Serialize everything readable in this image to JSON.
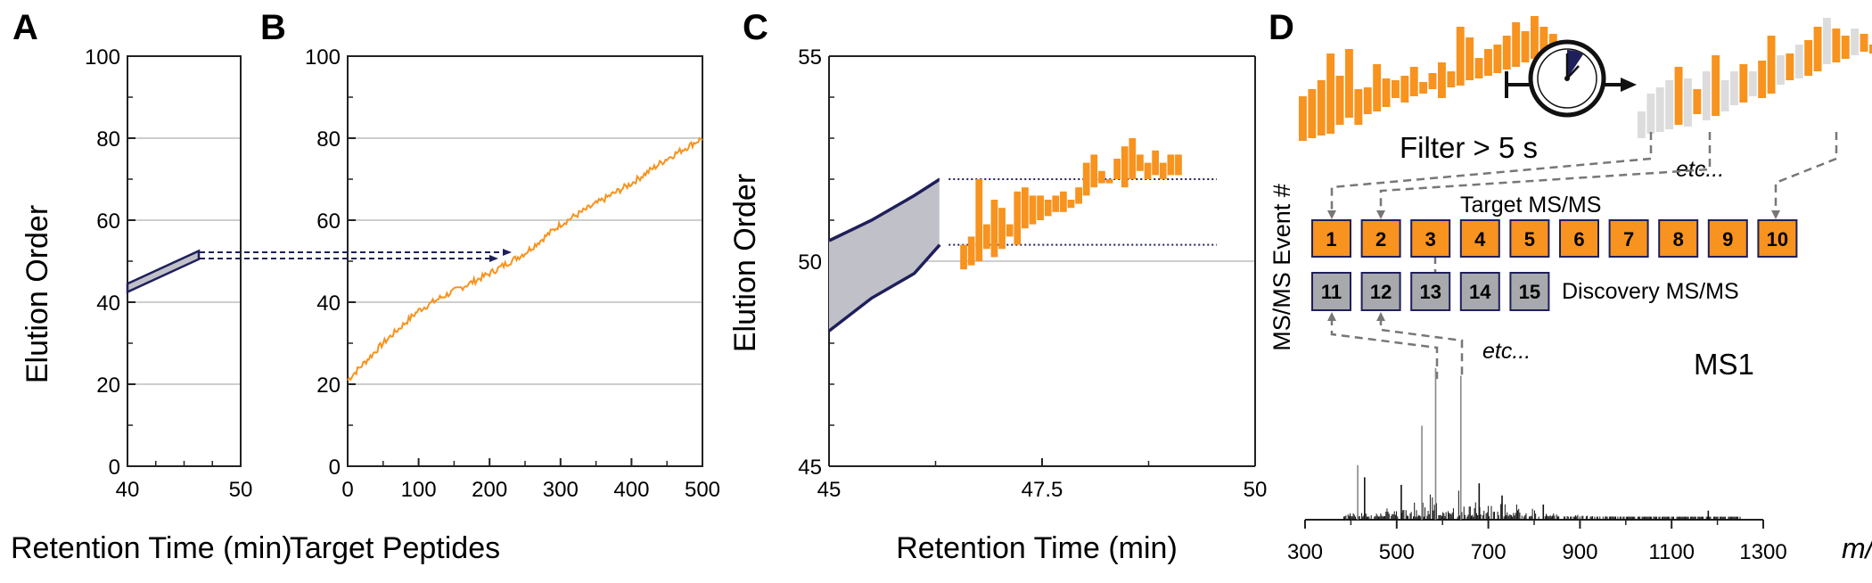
{
  "panels": {
    "a": {
      "letter": "A",
      "xlabel": "Retention Time (min)",
      "ylabel": "Elution Order",
      "xticks": [
        "40",
        "50"
      ],
      "yticks": [
        "0",
        "20",
        "40",
        "60",
        "80",
        "100"
      ]
    },
    "b": {
      "letter": "B",
      "xlabel": "Target Peptides",
      "xticks": [
        "0",
        "100",
        "200",
        "300",
        "400",
        "500"
      ],
      "yticks": [
        "0",
        "20",
        "40",
        "60",
        "80",
        "100"
      ]
    },
    "c": {
      "letter": "C",
      "xlabel": "Retention Time (min)",
      "ylabel": "Elution Order",
      "xticks": [
        "45",
        "47.5",
        "50"
      ],
      "yticks": [
        "45",
        "50",
        "55"
      ]
    },
    "d": {
      "letter": "D",
      "filter_label": "Filter > 5 s",
      "etc_label": "etc...",
      "target_label": "Target MS/MS",
      "discovery_label": "Discovery MS/MS",
      "event_axis_label": "MS/MS Event #",
      "ms1_label": "MS1",
      "target_events": [
        "1",
        "2",
        "3",
        "4",
        "5",
        "6",
        "7",
        "8",
        "9",
        "10"
      ],
      "discovery_events": [
        "11",
        "12",
        "13",
        "14",
        "15"
      ],
      "mz_ticks": [
        "300",
        "500",
        "700",
        "900",
        "1100",
        "1300"
      ],
      "mz_label": "m/z"
    }
  },
  "colors": {
    "orange": "#f7931e",
    "navy": "#1f1f5c",
    "band_gray": "#c0c0c8",
    "box_gray": "#a7a9ac",
    "light_gray": "#dcdcdc"
  },
  "chart_data": [
    {
      "type": "area",
      "panel": "A",
      "xlabel": "Retention Time (min)",
      "ylabel": "Elution Order",
      "xlim": [
        40,
        50
      ],
      "ylim": [
        0,
        100
      ],
      "grid": true,
      "band": {
        "x": [
          40,
          46.3
        ],
        "lower": [
          42.5,
          50.5
        ],
        "upper": [
          44.5,
          52.5
        ]
      }
    },
    {
      "type": "line",
      "panel": "B",
      "xlabel": "Target Peptides",
      "ylabel": "",
      "xlim": [
        0,
        500
      ],
      "ylim": [
        0,
        100
      ],
      "grid": true,
      "series": [
        {
          "x": [
            0,
            50,
            100,
            130,
            200,
            250,
            300,
            350,
            400,
            450,
            500
          ],
          "y": [
            21,
            30,
            38,
            41,
            47,
            52,
            59,
            64,
            69,
            75,
            80
          ]
        }
      ]
    },
    {
      "type": "area",
      "panel": "C",
      "xlabel": "Retention Time (min)",
      "ylabel": "Elution Order",
      "xlim": [
        45,
        50
      ],
      "ylim": [
        45,
        55
      ],
      "grid": true,
      "band": {
        "x": [
          45,
          45.5,
          46,
          46.3
        ],
        "lower": [
          48.3,
          49.1,
          49.7,
          50.4
        ],
        "upper": [
          50.5,
          51.0,
          51.6,
          52.0
        ]
      },
      "reference_lines": [
        50.4,
        52.0
      ],
      "bars": {
        "x": [
          46.58,
          46.67,
          46.76,
          46.85,
          46.94,
          47.03,
          47.12,
          47.21,
          47.3,
          47.39,
          47.48,
          47.57,
          47.66,
          47.75,
          47.84,
          47.93,
          48.02,
          48.11,
          48.2,
          48.29,
          48.38,
          48.47,
          48.56,
          48.65,
          48.74,
          48.83,
          48.92,
          49.01,
          49.1
        ],
        "low": [
          49.8,
          49.9,
          50.0,
          50.3,
          50.1,
          50.3,
          50.6,
          50.4,
          50.8,
          50.9,
          51.0,
          51.1,
          51.2,
          51.2,
          51.3,
          51.4,
          51.6,
          51.8,
          51.9,
          51.9,
          52.0,
          51.8,
          52.0,
          52.2,
          52.0,
          52.1,
          52.0,
          52.1,
          52.1
        ],
        "high": [
          50.4,
          50.6,
          52.0,
          50.9,
          51.5,
          51.3,
          50.9,
          51.7,
          51.8,
          51.6,
          51.6,
          51.5,
          51.6,
          51.7,
          51.5,
          51.8,
          52.4,
          52.6,
          52.2,
          52.0,
          52.5,
          52.8,
          53.0,
          52.6,
          52.4,
          52.7,
          52.4,
          52.6,
          52.6
        ]
      }
    },
    {
      "type": "bar",
      "panel": "D",
      "xlabel": "m/z",
      "xlim": [
        300,
        1300
      ],
      "note_peaks": [
        {
          "mz": 415,
          "intensity": 0.36
        },
        {
          "mz": 430,
          "intensity": 0.28
        },
        {
          "mz": 510,
          "intensity": 0.23
        },
        {
          "mz": 555,
          "intensity": 0.62
        },
        {
          "mz": 585,
          "intensity": 1.0
        },
        {
          "mz": 640,
          "intensity": 0.95
        },
        {
          "mz": 680,
          "intensity": 0.24
        },
        {
          "mz": 730,
          "intensity": 0.16
        },
        {
          "mz": 820,
          "intensity": 0.1
        },
        {
          "mz": 1180,
          "intensity": 0.06
        }
      ]
    }
  ]
}
